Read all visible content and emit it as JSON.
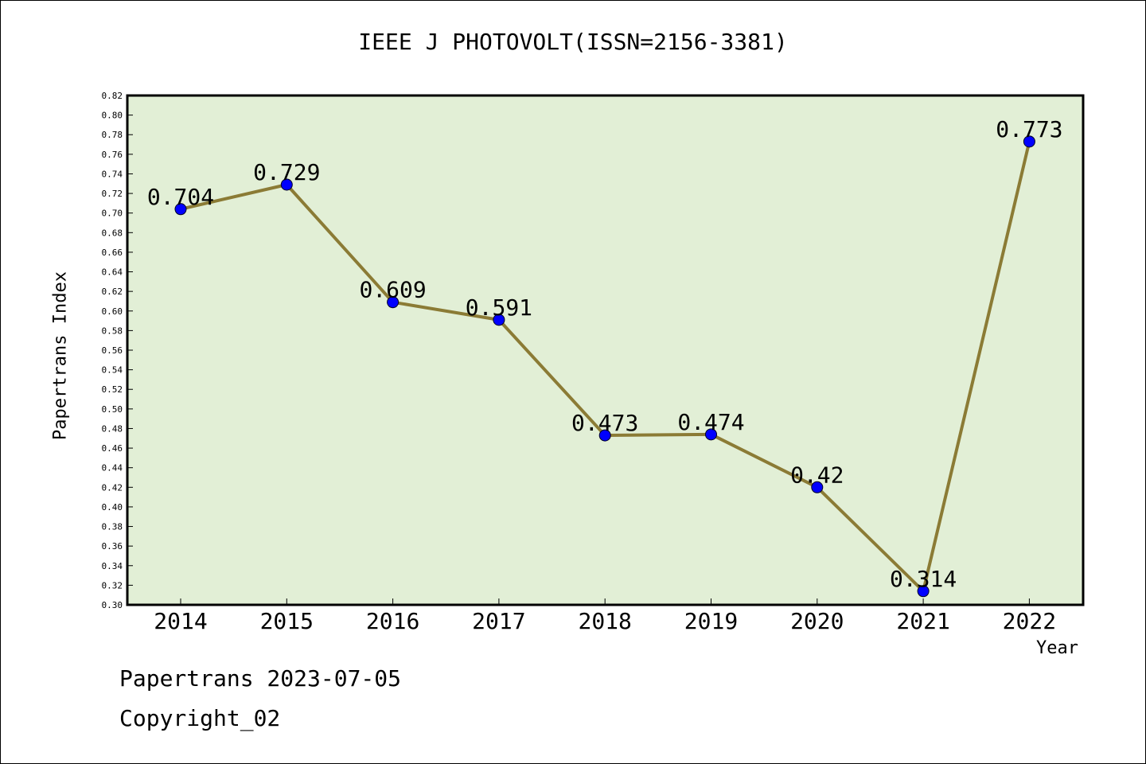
{
  "chart_data": {
    "type": "line",
    "title": "IEEE J PHOTOVOLT(ISSN=2156-3381)",
    "xlabel": "Year",
    "ylabel": "Papertrans Index",
    "categories": [
      "2014",
      "2015",
      "2016",
      "2017",
      "2018",
      "2019",
      "2020",
      "2021",
      "2022"
    ],
    "series": [
      {
        "values": [
          0.704,
          0.729,
          0.609,
          0.591,
          0.473,
          0.474,
          0.42,
          0.314,
          0.773
        ],
        "labels": [
          "0.704",
          "0.729",
          "0.609",
          "0.591",
          "0.473",
          "0.474",
          "0.42",
          "0.314",
          "0.773"
        ]
      }
    ],
    "ylim": [
      0.3,
      0.82
    ],
    "ytick_step": 0.02,
    "grid": false,
    "legend": "none",
    "colors": {
      "plot_background": "#e2efd6",
      "line": "#8b7b35",
      "marker": "#0000ff"
    }
  },
  "footer": {
    "date_text": "Papertrans 2023-07-05",
    "copyright_text": "Copyright_02"
  }
}
